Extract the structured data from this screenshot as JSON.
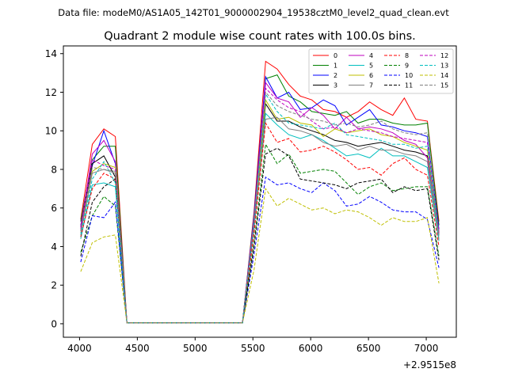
{
  "chart_data": {
    "type": "line",
    "suptitle": "Data file: modeM0/AS1A05_142T01_9000002904_19538cztM0_level2_quad_clean.evt",
    "title": "Quadrant 2 module wise count rates with 100.0s bins.",
    "xlabel": "",
    "ylabel": "",
    "x_offset_label": "+2.9515e8",
    "xlim": [
      3860,
      7260
    ],
    "ylim": [
      -0.7,
      14.4
    ],
    "xticks": [
      4000,
      4500,
      5000,
      5500,
      6000,
      6500,
      7000
    ],
    "xtick_labels": [
      "4000",
      "4500",
      "5000",
      "5500",
      "6000",
      "6500",
      "7000"
    ],
    "yticks": [
      0,
      2,
      4,
      6,
      8,
      10,
      12,
      14
    ],
    "ytick_labels": [
      "0",
      "2",
      "4",
      "6",
      "8",
      "10",
      "12",
      "14"
    ],
    "grid": false,
    "legend_position": "top-right",
    "x": [
      4010,
      4110,
      4210,
      4310,
      4410,
      4510,
      4610,
      4710,
      4810,
      4910,
      5010,
      5110,
      5210,
      5310,
      5410,
      5510,
      5610,
      5710,
      5810,
      5910,
      6010,
      6110,
      6210,
      6310,
      6410,
      6510,
      6610,
      6710,
      6810,
      6910,
      7010,
      7110
    ],
    "series": [
      {
        "name": "0",
        "color": "#ff0000",
        "dash": "solid",
        "values": [
          5.4,
          9.3,
          10.1,
          9.7,
          0.05,
          0.05,
          0.05,
          0.05,
          0.05,
          0.05,
          0.05,
          0.05,
          0.05,
          0.05,
          0.05,
          5.8,
          13.6,
          13.2,
          12.4,
          11.8,
          11.6,
          11.1,
          11.0,
          10.7,
          11.0,
          11.5,
          11.1,
          10.8,
          11.7,
          10.6,
          10.5,
          5.3
        ]
      },
      {
        "name": "1",
        "color": "#008000",
        "dash": "solid",
        "values": [
          5.3,
          8.5,
          9.2,
          9.2,
          0.05,
          0.05,
          0.05,
          0.05,
          0.05,
          0.05,
          0.05,
          0.05,
          0.05,
          0.05,
          0.05,
          5.7,
          12.7,
          12.9,
          11.8,
          11.5,
          11.0,
          10.9,
          10.8,
          11.0,
          10.4,
          10.6,
          10.6,
          10.4,
          10.3,
          10.3,
          10.4,
          5.1
        ]
      },
      {
        "name": "2",
        "color": "#0000ff",
        "dash": "solid",
        "values": [
          5.1,
          8.2,
          10.0,
          8.3,
          0.05,
          0.05,
          0.05,
          0.05,
          0.05,
          0.05,
          0.05,
          0.05,
          0.05,
          0.05,
          0.05,
          5.6,
          12.8,
          11.7,
          12.0,
          11.1,
          11.2,
          11.6,
          11.3,
          10.3,
          10.7,
          11.1,
          10.3,
          10.2,
          10.0,
          9.9,
          9.7,
          4.9
        ]
      },
      {
        "name": "3",
        "color": "#000000",
        "dash": "solid",
        "values": [
          5.0,
          8.3,
          8.7,
          7.6,
          0.05,
          0.05,
          0.05,
          0.05,
          0.05,
          0.05,
          0.05,
          0.05,
          0.05,
          0.05,
          0.05,
          5.3,
          11.4,
          10.5,
          10.5,
          10.2,
          10.0,
          9.8,
          9.5,
          9.4,
          9.2,
          9.3,
          9.4,
          9.2,
          9.0,
          8.9,
          8.7,
          4.7
        ]
      },
      {
        "name": "4",
        "color": "#bf00bf",
        "dash": "solid",
        "values": [
          5.0,
          8.8,
          9.5,
          8.4,
          0.05,
          0.05,
          0.05,
          0.05,
          0.05,
          0.05,
          0.05,
          0.05,
          0.05,
          0.05,
          0.05,
          5.5,
          12.5,
          11.7,
          11.5,
          10.7,
          11.2,
          10.8,
          10.1,
          10.7,
          10.1,
          10.2,
          10.1,
          9.9,
          9.5,
          9.3,
          8.6,
          4.8
        ]
      },
      {
        "name": "5",
        "color": "#00bfbf",
        "dash": "solid",
        "values": [
          4.4,
          7.2,
          7.3,
          7.1,
          0.05,
          0.05,
          0.05,
          0.05,
          0.05,
          0.05,
          0.05,
          0.05,
          0.05,
          0.05,
          0.05,
          4.9,
          10.9,
          10.3,
          9.8,
          9.6,
          9.8,
          9.5,
          9.1,
          8.7,
          8.8,
          8.6,
          9.1,
          8.7,
          8.7,
          8.4,
          8.1,
          4.3
        ]
      },
      {
        "name": "6",
        "color": "#bfbf00",
        "dash": "solid",
        "values": [
          4.8,
          7.9,
          8.3,
          8.1,
          0.05,
          0.05,
          0.05,
          0.05,
          0.05,
          0.05,
          0.05,
          0.05,
          0.05,
          0.05,
          0.05,
          5.1,
          11.6,
          10.6,
          10.7,
          10.4,
          10.3,
          9.7,
          10.1,
          9.9,
          10.0,
          10.1,
          9.8,
          9.7,
          9.4,
          9.2,
          9.0,
          4.6
        ]
      },
      {
        "name": "7",
        "color": "#808080",
        "dash": "solid",
        "values": [
          4.7,
          7.8,
          8.0,
          7.8,
          0.05,
          0.05,
          0.05,
          0.05,
          0.05,
          0.05,
          0.05,
          0.05,
          0.05,
          0.05,
          0.05,
          5.0,
          10.6,
          10.7,
          10.1,
          10.0,
          9.8,
          9.4,
          9.2,
          9.3,
          9.0,
          9.2,
          9.0,
          9.0,
          8.8,
          8.7,
          8.4,
          4.4
        ]
      },
      {
        "name": "8",
        "color": "#ff0000",
        "dash": "dashed",
        "values": [
          4.5,
          7.0,
          7.8,
          7.5,
          0.05,
          0.05,
          0.05,
          0.05,
          0.05,
          0.05,
          0.05,
          0.05,
          0.05,
          0.05,
          0.05,
          4.7,
          10.4,
          9.4,
          9.6,
          8.9,
          9.0,
          9.2,
          8.9,
          8.5,
          8.0,
          8.1,
          7.7,
          8.3,
          8.6,
          8.0,
          7.7,
          4.0
        ]
      },
      {
        "name": "9",
        "color": "#008000",
        "dash": "dashed",
        "values": [
          3.7,
          5.6,
          6.6,
          6.1,
          0.05,
          0.05,
          0.05,
          0.05,
          0.05,
          0.05,
          0.05,
          0.05,
          0.05,
          0.05,
          0.05,
          4.2,
          9.3,
          8.3,
          8.8,
          7.8,
          7.9,
          8.0,
          7.9,
          7.3,
          6.7,
          7.1,
          7.3,
          6.9,
          7.0,
          7.1,
          7.1,
          3.5
        ]
      },
      {
        "name": "10",
        "color": "#0000ff",
        "dash": "dashed",
        "values": [
          3.2,
          5.6,
          5.5,
          6.3,
          0.05,
          0.05,
          0.05,
          0.05,
          0.05,
          0.05,
          0.05,
          0.05,
          0.05,
          0.05,
          0.05,
          3.6,
          7.6,
          7.2,
          7.3,
          7.0,
          6.8,
          7.3,
          6.9,
          6.1,
          6.2,
          6.6,
          6.3,
          5.9,
          5.8,
          5.8,
          5.4,
          2.9
        ]
      },
      {
        "name": "11",
        "color": "#000000",
        "dash": "dashed",
        "values": [
          3.5,
          6.3,
          7.1,
          7.5,
          0.05,
          0.05,
          0.05,
          0.05,
          0.05,
          0.05,
          0.05,
          0.05,
          0.05,
          0.05,
          0.05,
          4.0,
          8.8,
          9.1,
          8.7,
          7.5,
          7.4,
          7.3,
          7.2,
          7.0,
          7.3,
          7.4,
          7.5,
          6.8,
          7.1,
          6.9,
          7.0,
          3.3
        ]
      },
      {
        "name": "12",
        "color": "#bf00bf",
        "dash": "dashed",
        "values": [
          4.9,
          8.5,
          8.2,
          8.0,
          0.05,
          0.05,
          0.05,
          0.05,
          0.05,
          0.05,
          0.05,
          0.05,
          0.05,
          0.05,
          0.05,
          5.4,
          12.2,
          11.6,
          11.2,
          11.0,
          10.5,
          10.1,
          10.2,
          9.9,
          10.1,
          10.0,
          9.9,
          9.7,
          9.6,
          9.5,
          9.4,
          4.7
        ]
      },
      {
        "name": "13",
        "color": "#00bfbf",
        "dash": "dashed",
        "values": [
          4.6,
          7.5,
          8.4,
          7.3,
          0.05,
          0.05,
          0.05,
          0.05,
          0.05,
          0.05,
          0.05,
          0.05,
          0.05,
          0.05,
          0.05,
          5.2,
          11.9,
          11.0,
          10.4,
          10.3,
          10.2,
          10.1,
          10.4,
          9.8,
          9.7,
          9.6,
          9.5,
          9.3,
          9.3,
          9.1,
          9.2,
          4.5
        ]
      },
      {
        "name": "14",
        "color": "#bfbf00",
        "dash": "dashed",
        "values": [
          2.7,
          4.2,
          4.5,
          4.6,
          0.05,
          0.05,
          0.05,
          0.05,
          0.05,
          0.05,
          0.05,
          0.05,
          0.05,
          0.05,
          0.05,
          2.8,
          7.0,
          6.1,
          6.5,
          6.2,
          5.9,
          6.0,
          5.7,
          5.9,
          5.8,
          5.5,
          5.1,
          5.5,
          5.3,
          5.3,
          5.5,
          2.1
        ]
      },
      {
        "name": "15",
        "color": "#808080",
        "dash": "dashed",
        "values": [
          4.8,
          8.1,
          8.0,
          7.9,
          0.05,
          0.05,
          0.05,
          0.05,
          0.05,
          0.05,
          0.05,
          0.05,
          0.05,
          0.05,
          0.05,
          5.3,
          12.0,
          11.3,
          11.0,
          10.8,
          10.6,
          10.5,
          10.3,
          10.4,
          10.2,
          10.3,
          10.5,
          10.1,
          9.9,
          9.8,
          9.9,
          4.6
        ]
      }
    ]
  }
}
